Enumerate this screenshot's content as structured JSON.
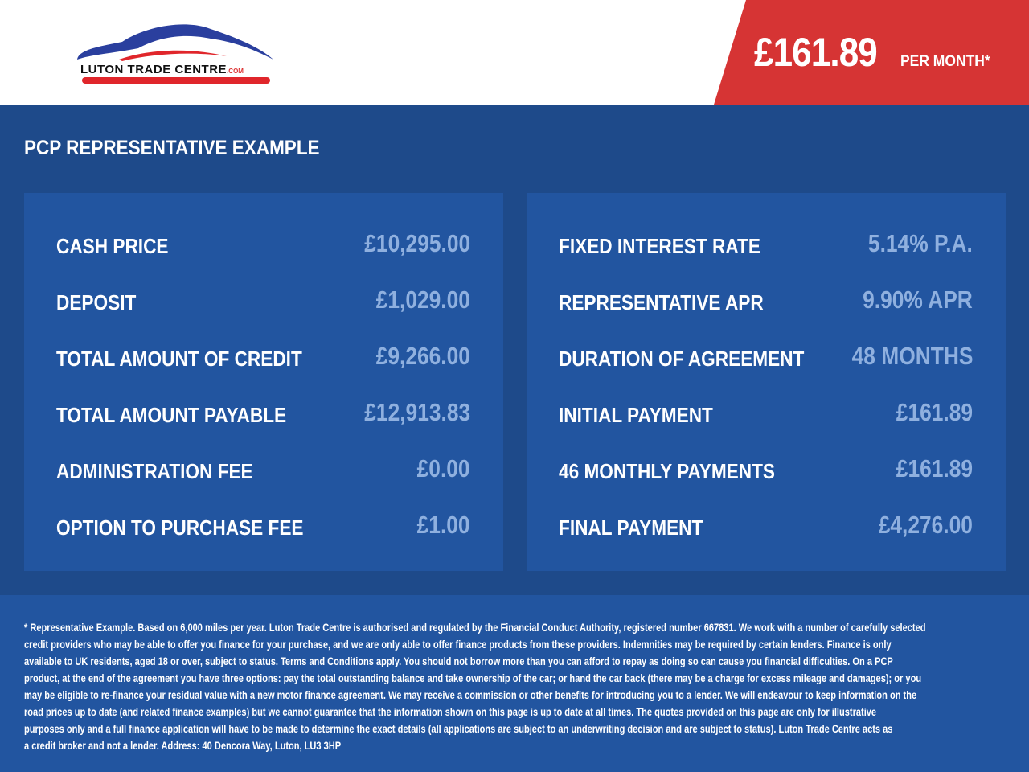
{
  "brand": {
    "logo_text": "LUTON TRADE CENTRE",
    "logo_suffix": ".COM",
    "colors": {
      "blue": "#2a3f9e",
      "red": "#e0262b"
    }
  },
  "header": {
    "price": "£161.89",
    "per_month": "PER MONTH*"
  },
  "section_title": "PCP REPRESENTATIVE EXAMPLE",
  "left_panel": [
    {
      "label": "CASH PRICE",
      "value": "£10,295.00"
    },
    {
      "label": "DEPOSIT",
      "value": "£1,029.00"
    },
    {
      "label": "TOTAL AMOUNT OF CREDIT",
      "value": "£9,266.00"
    },
    {
      "label": "TOTAL AMOUNT PAYABLE",
      "value": "£12,913.83"
    },
    {
      "label": "ADMINISTRATION FEE",
      "value": "£0.00"
    },
    {
      "label": "OPTION TO PURCHASE FEE",
      "value": "£1.00"
    }
  ],
  "right_panel": [
    {
      "label": "FIXED INTEREST RATE",
      "value": "5.14% P.A."
    },
    {
      "label": "REPRESENTATIVE APR",
      "value": "9.90% APR"
    },
    {
      "label": "DURATION OF AGREEMENT",
      "value": "48 MONTHS"
    },
    {
      "label": "INITIAL PAYMENT",
      "value": "£161.89"
    },
    {
      "label": "46 MONTHLY PAYMENTS",
      "value": "£161.89"
    },
    {
      "label": "FINAL PAYMENT",
      "value": "£4,276.00"
    }
  ],
  "disclaimer": [
    "* Representative Example. Based on 6,000 miles per year. Luton Trade Centre is authorised and regulated by the Financial Conduct Authority, registered number 667831. We work with a number of carefully selected",
    "credit providers who may be able to offer you finance for your purchase, and we are only able to offer finance products from these providers. Indemnities may be required by certain lenders. Finance is only",
    "available to UK residents, aged 18 or over, subject to status. Terms and Conditions apply. You should not borrow more than you can afford to repay as doing so can cause you financial difficulties. On a PCP",
    "product, at the end of the agreement you have three options: pay the total outstanding balance and take ownership of the car; or hand the car back (there may be a charge for excess mileage and damages); or you",
    "may be eligible to re-finance your residual value with a new motor finance agreement. We may receive a commission or other benefits for introducing you to a lender. We will endeavour to keep information on the",
    "road prices up to date (and related finance examples) but we cannot guarantee that the information shown on this page is up to date at all times. The quotes provided on this page are only for illustrative",
    "purposes only and a full finance application will have to be made to determine the exact details (all applications are subject to an underwriting decision and are subject to status). Luton Trade Centre acts as",
    "a credit broker and not a lender. Address: 40 Dencora Way, Luton, LU3 3HP"
  ]
}
